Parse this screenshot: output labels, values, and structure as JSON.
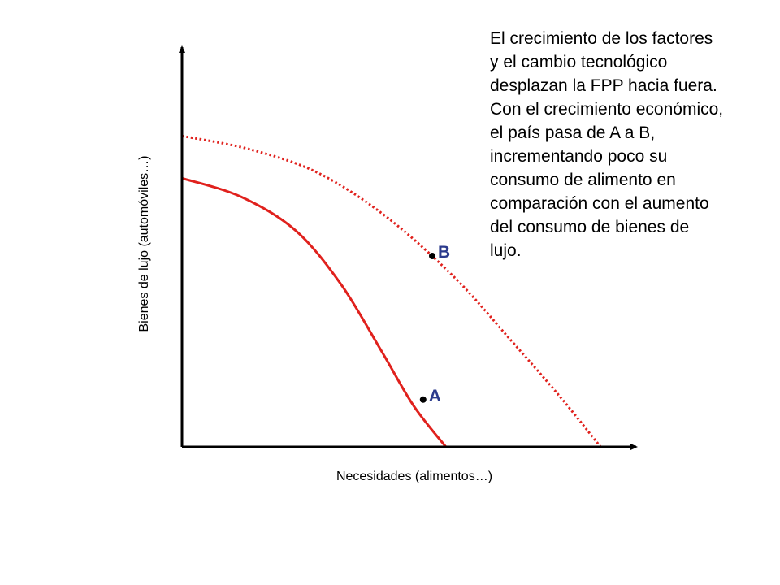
{
  "annotation": "El crecimiento de los factores\ny el cambio tecnológico\ndesplazan la FPP hacia fuera.\nCon el crecimiento económico,\nel país pasa de A a B,\nincrementando poco su\nconsumo de alimento en\ncomparación con el aumento\ndel consumo de bienes de\nlujo.",
  "colors": {
    "curve": "#e0211d",
    "point_label": "#2b3a8c",
    "axis": "#000000"
  },
  "chart_data": {
    "type": "line",
    "title": "",
    "xlabel": "Necesidades (alimentos…)",
    "ylabel": "Bienes de lujo (automóviles…)",
    "xlim": [
      0,
      10
    ],
    "ylim": [
      0,
      10
    ],
    "grid": false,
    "legend": "none",
    "series": [
      {
        "style": "solid",
        "x": [
          0,
          1.3,
          2.5,
          3.5,
          4.4,
          5.1,
          5.8
        ],
        "y": [
          7.95,
          7.4,
          6.4,
          4.8,
          2.8,
          1.2,
          0
        ]
      },
      {
        "style": "dotted",
        "x": [
          0,
          1.5,
          3.0,
          4.5,
          6.0,
          7.2,
          8.3,
          9.2
        ],
        "y": [
          9.2,
          8.8,
          8.1,
          6.8,
          5.0,
          3.2,
          1.5,
          0
        ]
      }
    ],
    "points": [
      {
        "label": "A",
        "x": 5.3,
        "y": 1.4
      },
      {
        "label": "B",
        "x": 5.5,
        "y": 5.65
      }
    ]
  }
}
